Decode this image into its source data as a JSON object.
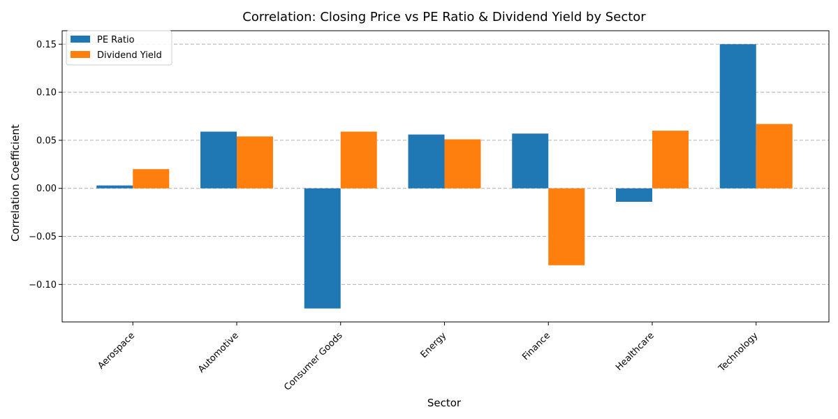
{
  "chart_data": {
    "type": "bar",
    "title": "Correlation: Closing Price vs PE Ratio & Dividend Yield by Sector",
    "xlabel": "Sector",
    "ylabel": "Correlation Coefficient",
    "categories": [
      "Aerospace",
      "Automotive",
      "Consumer Goods",
      "Energy",
      "Finance",
      "Healthcare",
      "Technology"
    ],
    "series": [
      {
        "name": "PE Ratio",
        "color": "#1f77b4",
        "values": [
          0.003,
          0.059,
          -0.125,
          0.056,
          0.057,
          -0.014,
          0.15
        ]
      },
      {
        "name": "Dividend Yield",
        "color": "#ff7f0e",
        "values": [
          0.02,
          0.054,
          0.059,
          0.051,
          -0.08,
          0.06,
          0.067
        ]
      }
    ],
    "ylim": [
      -0.139,
      0.164
    ],
    "yticks": [
      -0.1,
      -0.05,
      0.0,
      0.05,
      0.1,
      0.15
    ],
    "ytick_labels": [
      "−0.10",
      "−0.05",
      "0.00",
      "0.05",
      "0.10",
      "0.15"
    ],
    "grid": "y-dashed",
    "legend_position": "top-left"
  }
}
